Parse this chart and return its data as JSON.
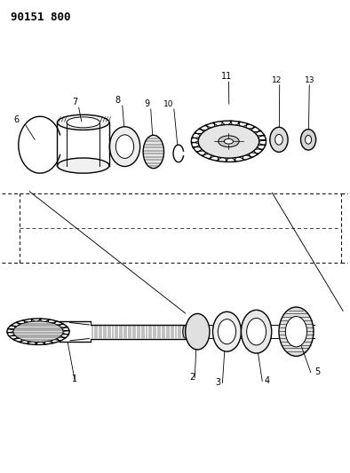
{
  "title": "90151 800",
  "bg_color": "#ffffff",
  "line_color": "#000000",
  "fig_width": 3.94,
  "fig_height": 5.33,
  "dpi": 100
}
